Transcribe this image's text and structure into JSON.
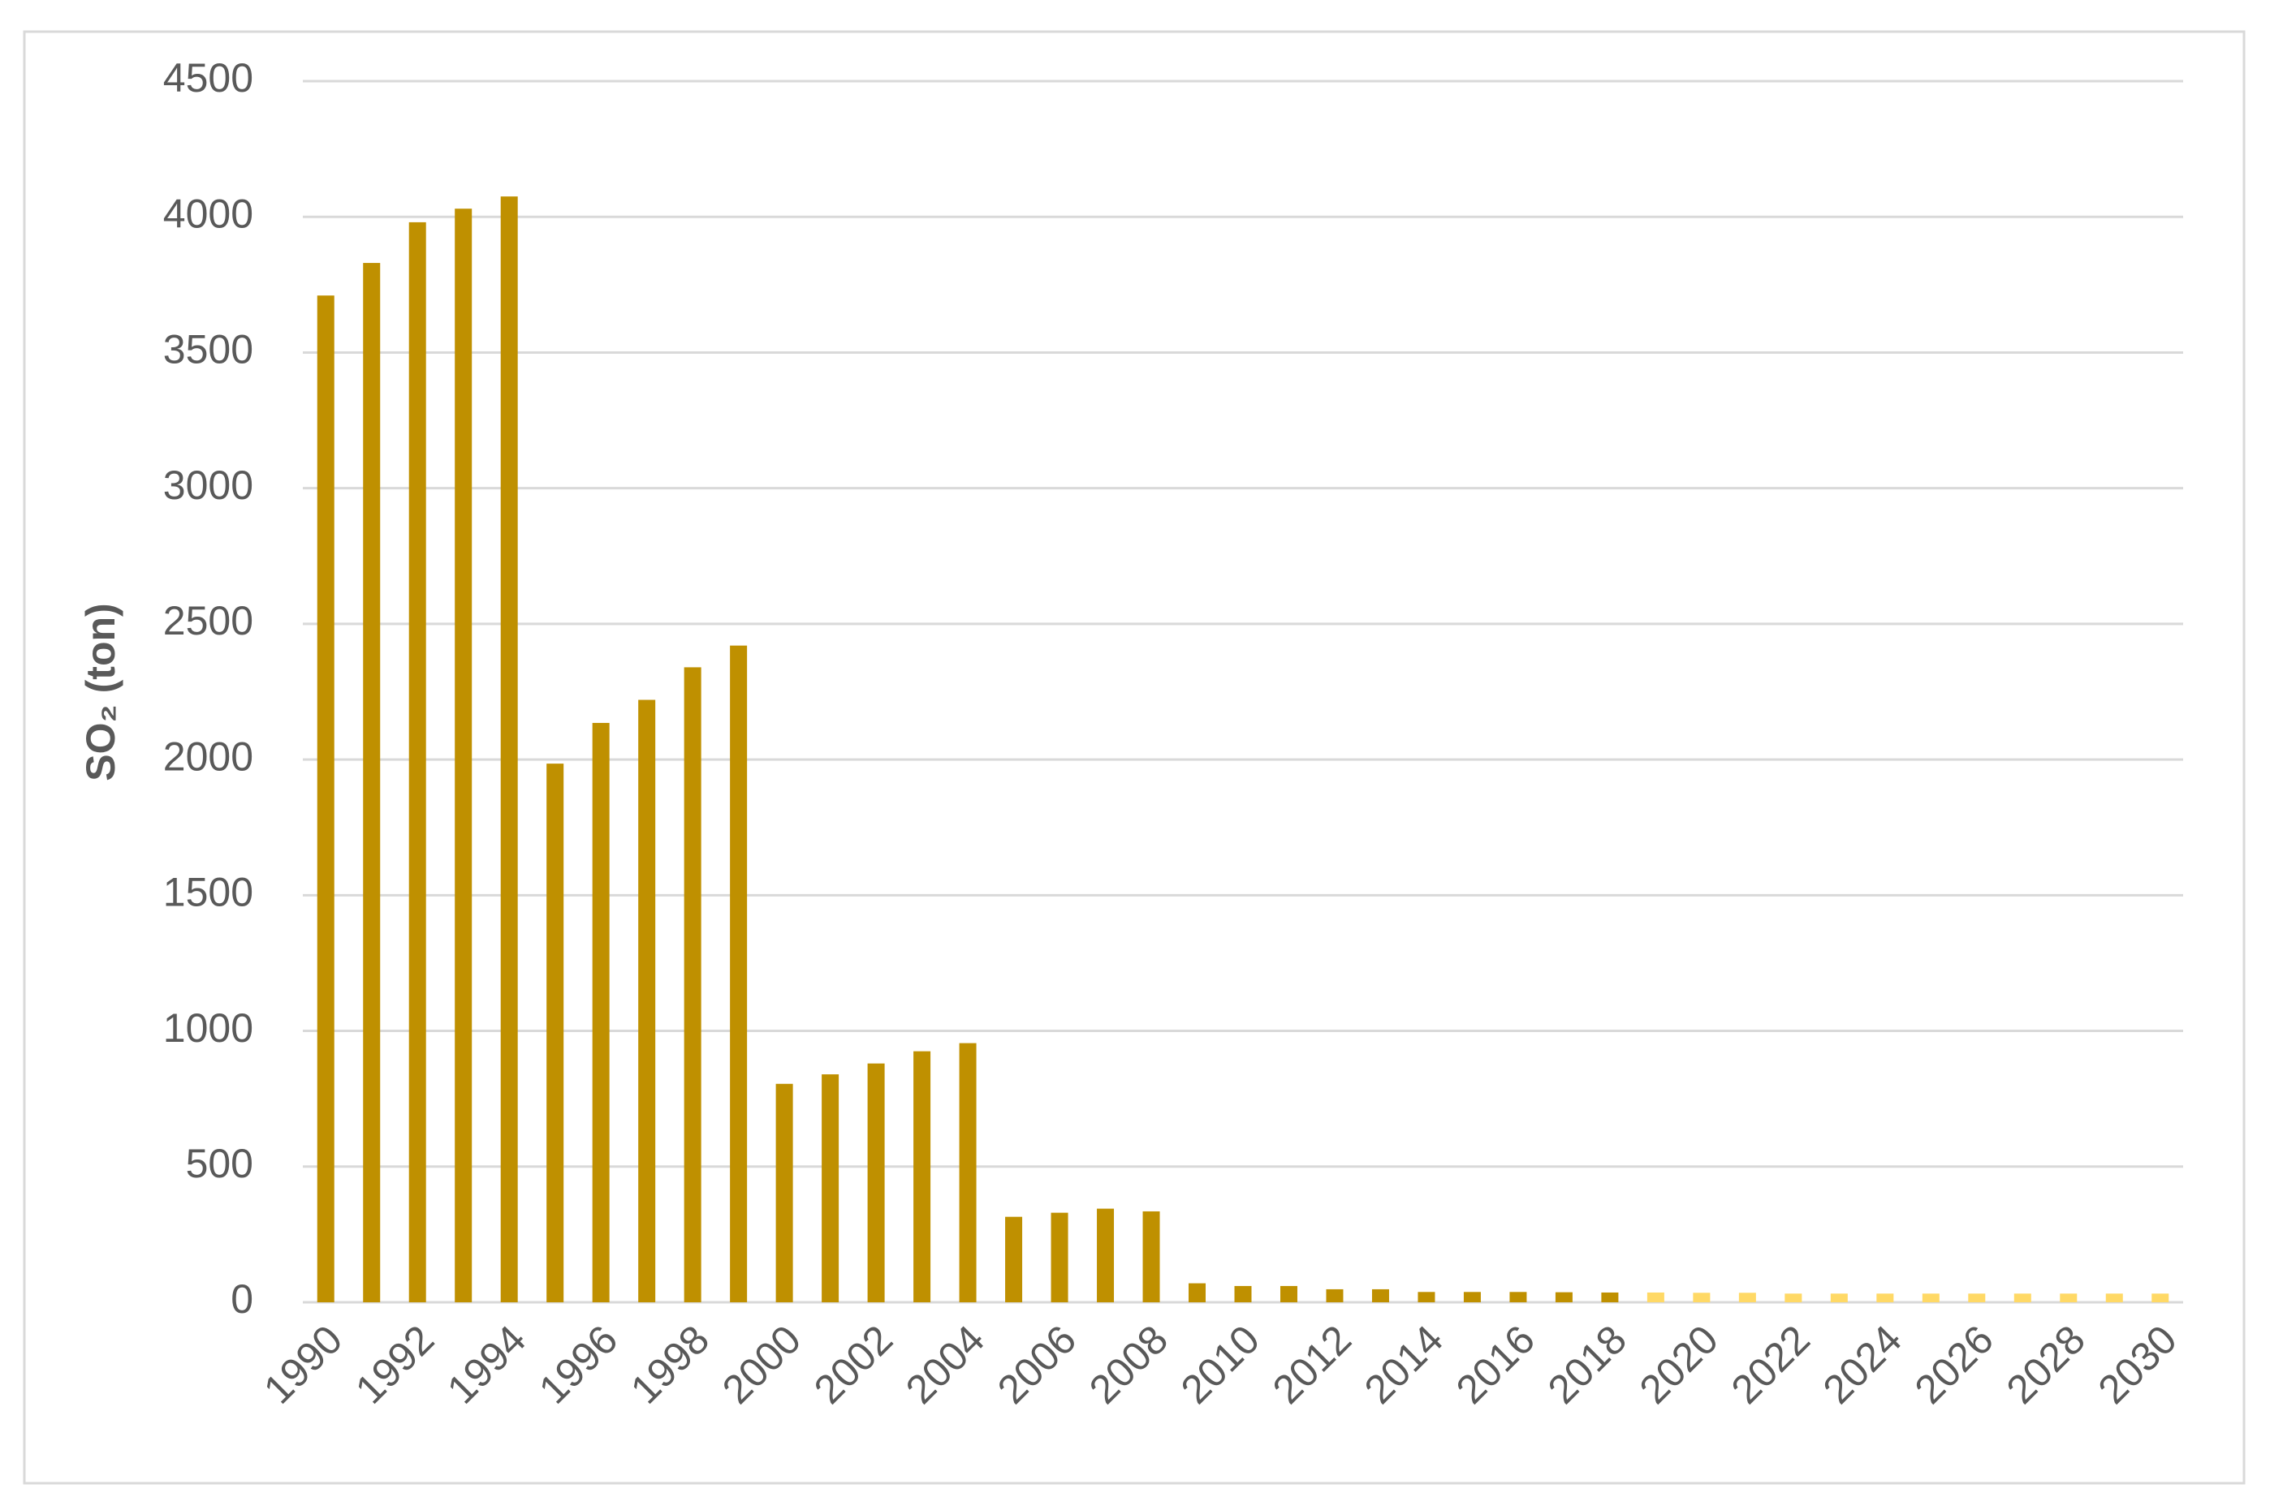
{
  "chart_data": {
    "type": "bar",
    "y_label": "SO₂ (ton)",
    "categories": [
      "1990",
      null,
      "1992",
      null,
      "1994",
      null,
      "1996",
      null,
      "1998",
      null,
      "2000",
      null,
      "2002",
      null,
      "2004",
      null,
      "2006",
      null,
      "2008",
      null,
      "2010",
      null,
      "2012",
      null,
      "2014",
      null,
      "2016",
      null,
      "2018",
      null,
      "2020",
      null,
      "2022",
      null,
      "2024",
      null,
      "2026",
      null,
      "2028",
      null,
      "2030"
    ],
    "values": [
      3710,
      3830,
      3980,
      4030,
      4075,
      1985,
      2135,
      2220,
      2340,
      2420,
      805,
      840,
      880,
      925,
      955,
      315,
      330,
      345,
      335,
      70,
      60,
      60,
      48,
      48,
      38,
      38,
      38,
      37,
      36,
      36,
      35,
      35,
      32,
      32,
      32,
      32,
      32,
      32,
      32,
      32,
      32
    ],
    "colors": [
      "#bf9000",
      "#bf9000",
      "#bf9000",
      "#bf9000",
      "#bf9000",
      "#bf9000",
      "#bf9000",
      "#bf9000",
      "#bf9000",
      "#bf9000",
      "#bf9000",
      "#bf9000",
      "#bf9000",
      "#bf9000",
      "#bf9000",
      "#bf9000",
      "#bf9000",
      "#bf9000",
      "#bf9000",
      "#bf9000",
      "#bf9000",
      "#bf9000",
      "#bf9000",
      "#bf9000",
      "#bf9000",
      "#bf9000",
      "#bf9000",
      "#bf9000",
      "#bf9000",
      "#ffd966",
      "#ffd966",
      "#ffd966",
      "#ffd966",
      "#ffd966",
      "#ffd966",
      "#ffd966",
      "#ffd966",
      "#ffd966",
      "#ffd966",
      "#ffd966",
      "#ffd966"
    ],
    "ylim": [
      0,
      4500
    ],
    "yticks": [
      0,
      500,
      1000,
      1500,
      2000,
      2500,
      3000,
      3500,
      4000,
      4500
    ],
    "grid": true
  }
}
